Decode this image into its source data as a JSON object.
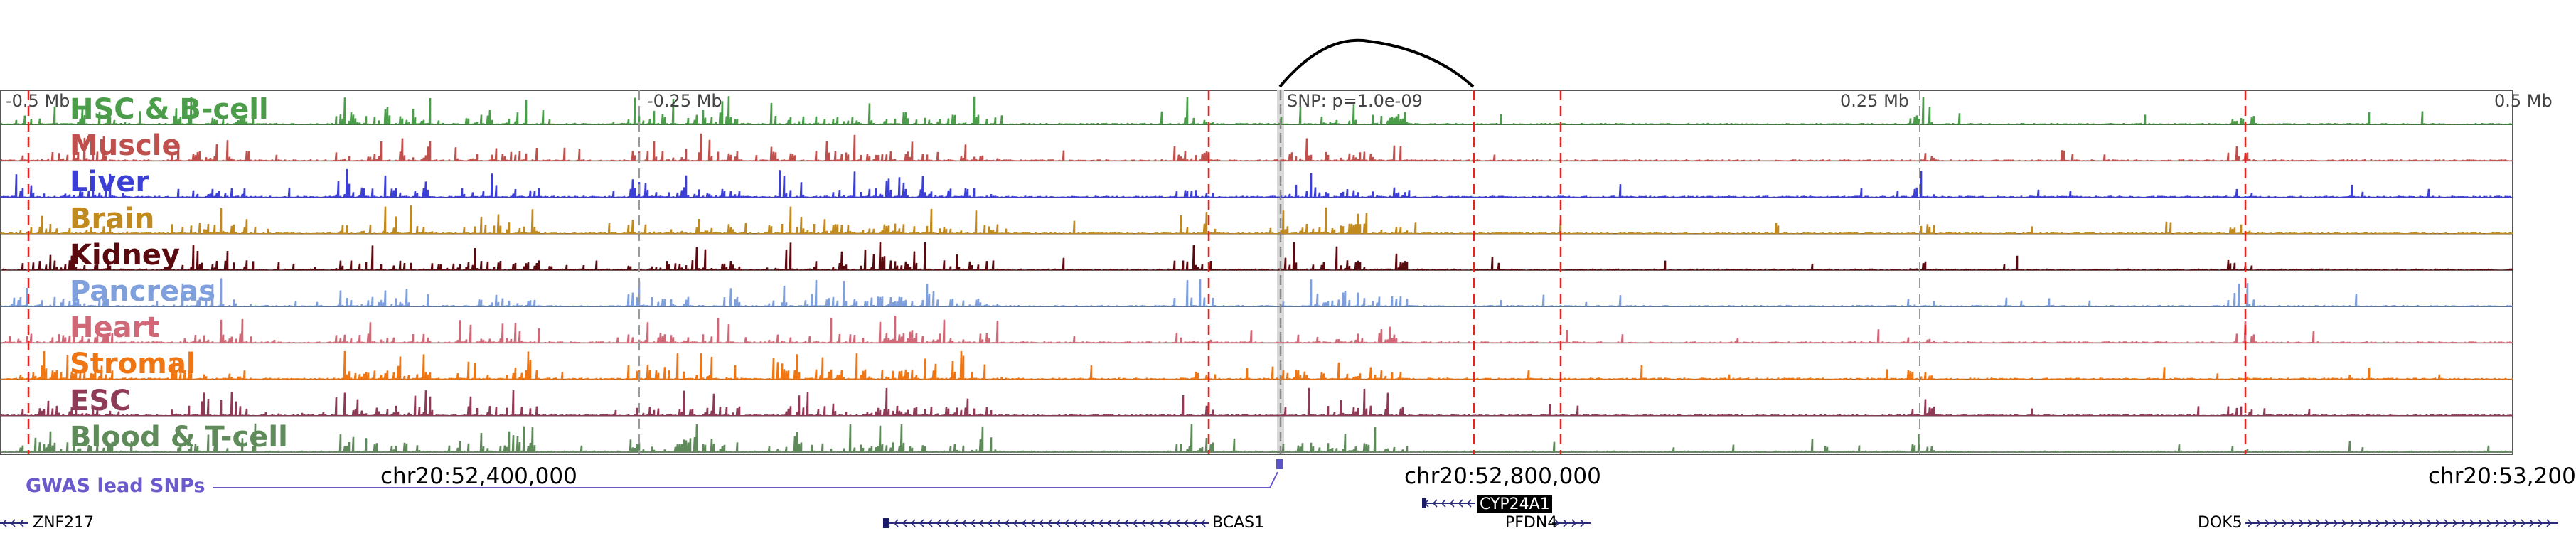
{
  "browser": {
    "ticks": [
      "-0.5 Mb",
      "-0.25 Mb",
      "0.25 Mb",
      "0.5 Mb"
    ],
    "snp_label": "SNP: p=1.0e-09",
    "gwas_label": "GWAS lead SNPs",
    "coords": [
      "chr20:52,400,000",
      "chr20:52,800,000",
      "chr20:53,200"
    ],
    "tracks": [
      {
        "name": "HSC & B-cell",
        "color": "#4b9d4a",
        "seed": 11
      },
      {
        "name": "Muscle",
        "color": "#c0504d",
        "seed": 23
      },
      {
        "name": "Liver",
        "color": "#3c3fd6",
        "seed": 37
      },
      {
        "name": "Brain",
        "color": "#c08a1e",
        "seed": 41
      },
      {
        "name": "Kidney",
        "color": "#5a0a0f",
        "seed": 53
      },
      {
        "name": "Pancreas",
        "color": "#7fa0dc",
        "seed": 67
      },
      {
        "name": "Heart",
        "color": "#d06878",
        "seed": 71
      },
      {
        "name": "Stromal",
        "color": "#ef7612",
        "seed": 83
      },
      {
        "name": "ESC",
        "color": "#8e3b57",
        "seed": 97
      },
      {
        "name": "Blood & T-cell",
        "color": "#5f8a5a",
        "seed": 101
      }
    ],
    "genes": [
      {
        "name": "ZNF217",
        "strand": "-",
        "highlight": false
      },
      {
        "name": "BCAS1",
        "strand": "-",
        "highlight": false
      },
      {
        "name": "CYP24A1",
        "strand": "-",
        "highlight": true
      },
      {
        "name": "PFDN4",
        "strand": "+",
        "highlight": false
      },
      {
        "name": "DOK5",
        "strand": "+",
        "highlight": false
      }
    ]
  }
}
